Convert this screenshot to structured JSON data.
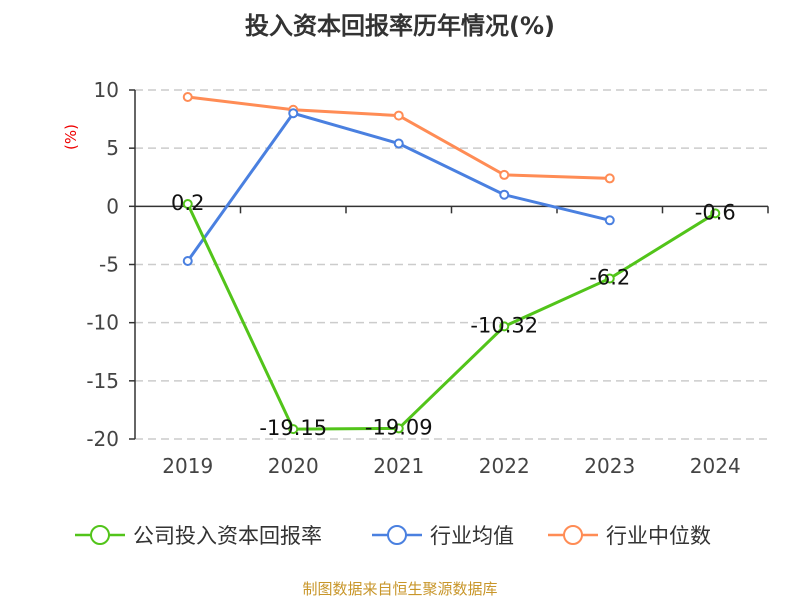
{
  "chart_data": {
    "type": "line",
    "title": "投入资本回报率历年情况(%)",
    "ylabel": "(%)",
    "xlabel": "",
    "categories": [
      "2019",
      "2020",
      "2021",
      "2022",
      "2023",
      "2024"
    ],
    "ylim": [
      -20,
      10
    ],
    "yticks": [
      10,
      5,
      0,
      -5,
      -10,
      -15,
      -20
    ],
    "grid": true,
    "legend_position": "bottom",
    "series": [
      {
        "name": "公司投入资本回报率",
        "color": "#52c41a",
        "values": [
          0.2,
          -19.15,
          -19.09,
          -10.32,
          -6.2,
          -0.6
        ],
        "labels": [
          "0.2",
          "-19.15",
          "-19.09",
          "-10.32",
          "-6.2",
          "-0.6"
        ]
      },
      {
        "name": "行业均值",
        "color": "#4a80e0",
        "values": [
          -4.7,
          8.0,
          5.4,
          1.0,
          -1.2,
          null
        ]
      },
      {
        "name": "行业中位数",
        "color": "#ff8c55",
        "values": [
          9.4,
          8.3,
          7.8,
          2.7,
          2.4,
          null
        ]
      }
    ]
  },
  "source": "制图数据来自恒生聚源数据库"
}
